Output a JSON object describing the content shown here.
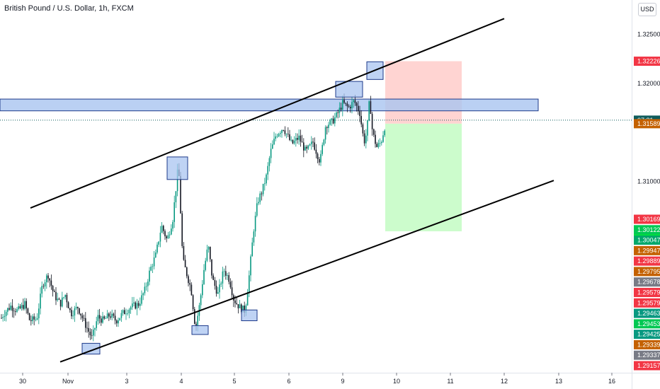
{
  "header": {
    "symbol_title": "British Pound / U.S. Dollar, 1h, FXCM",
    "currency_button": "USD"
  },
  "chart_data": {
    "type": "candlestick",
    "title": "British Pound / U.S. Dollar, 1h, FXCM",
    "ylim": [
      1.2905,
      1.3285
    ],
    "grid": false,
    "x_tick_labels": [
      "30",
      "Nov",
      "3",
      "4",
      "5",
      "6",
      "9",
      "10",
      "11",
      "12",
      "13",
      "16"
    ],
    "y_tick_labels": [
      "1.32500",
      "1.32000",
      "1.31000"
    ],
    "y_tick_values": [
      1.325,
      1.32,
      1.31
    ],
    "price_path": [
      [
        0,
        1.2958
      ],
      [
        5,
        1.2965
      ],
      [
        15,
        1.2973
      ],
      [
        25,
        1.2968
      ],
      [
        35,
        1.2975
      ],
      [
        42,
        1.2958
      ],
      [
        52,
        1.296
      ],
      [
        60,
        1.2995
      ],
      [
        68,
        1.3005
      ],
      [
        76,
        1.2985
      ],
      [
        85,
        1.2975
      ],
      [
        92,
        1.2985
      ],
      [
        100,
        1.2965
      ],
      [
        110,
        1.2972
      ],
      [
        120,
        1.2955
      ],
      [
        130,
        1.294
      ],
      [
        138,
        1.2962
      ],
      [
        146,
        1.2958
      ],
      [
        155,
        1.2964
      ],
      [
        164,
        1.2958
      ],
      [
        174,
        1.2966
      ],
      [
        185,
        1.2972
      ],
      [
        196,
        1.2975
      ],
      [
        205,
        1.299
      ],
      [
        212,
        1.301
      ],
      [
        220,
        1.3025
      ],
      [
        228,
        1.3055
      ],
      [
        236,
        1.304
      ],
      [
        244,
        1.3062
      ],
      [
        252,
        1.3118
      ],
      [
        258,
        1.302
      ],
      [
        264,
        1.3005
      ],
      [
        270,
        1.299
      ],
      [
        276,
        1.295
      ],
      [
        282,
        1.2975
      ],
      [
        288,
        1.301
      ],
      [
        294,
        1.3035
      ],
      [
        300,
        1.3
      ],
      [
        308,
        1.2985
      ],
      [
        316,
        1.301
      ],
      [
        324,
        1.3
      ],
      [
        330,
        1.298
      ],
      [
        338,
        1.2972
      ],
      [
        346,
        1.2968
      ],
      [
        352,
        1.3005
      ],
      [
        358,
        1.305
      ],
      [
        364,
        1.308
      ],
      [
        370,
        1.309
      ],
      [
        376,
        1.3105
      ],
      [
        382,
        1.313
      ],
      [
        390,
        1.3148
      ],
      [
        400,
        1.3155
      ],
      [
        412,
        1.3138
      ],
      [
        422,
        1.3145
      ],
      [
        432,
        1.313
      ],
      [
        442,
        1.314
      ],
      [
        452,
        1.312
      ],
      [
        460,
        1.3158
      ],
      [
        468,
        1.316
      ],
      [
        476,
        1.3168
      ],
      [
        484,
        1.318
      ],
      [
        492,
        1.3175
      ],
      [
        500,
        1.3182
      ],
      [
        508,
        1.317
      ],
      [
        514,
        1.314
      ],
      [
        518,
        1.315
      ],
      [
        522,
        1.3185
      ],
      [
        526,
        1.315
      ],
      [
        532,
        1.3135
      ],
      [
        538,
        1.314
      ],
      [
        544,
        1.3158
      ]
    ],
    "trend_lines": [
      {
        "name": "channel-upper",
        "points": [
          [
            43,
            1.3073
          ],
          [
            712,
            1.3266
          ]
        ]
      },
      {
        "name": "channel-lower",
        "points": [
          [
            85,
            1.2916
          ],
          [
            782,
            1.3101
          ]
        ]
      }
    ],
    "horizontal_zone": {
      "x_range": [
        0,
        760
      ],
      "y_range": [
        1.3172,
        1.3184
      ]
    },
    "pivot_markers": [
      {
        "x_range": [
          116,
          141
        ],
        "y_range": [
          1.2924,
          1.2935
        ]
      },
      {
        "x_range": [
          236,
          265
        ],
        "y_range": [
          1.3102,
          1.3125
        ]
      },
      {
        "x_range": [
          271,
          294
        ],
        "y_range": [
          1.2944,
          1.2953
        ]
      },
      {
        "x_range": [
          341,
          363
        ],
        "y_range": [
          1.2958,
          1.2969
        ]
      },
      {
        "x_range": [
          474,
          512
        ],
        "y_range": [
          1.3186,
          1.3202
        ]
      },
      {
        "x_range": [
          518,
          541
        ],
        "y_range": [
          1.3204,
          1.3222
        ]
      }
    ],
    "position": {
      "x_range": [
        544,
        652
      ],
      "entry": 1.31589,
      "stop": 1.32226,
      "target": 1.30492
    },
    "current_price_line": 1.31625,
    "price_badges": [
      {
        "label": "1.32226",
        "value": 1.32226,
        "color": "#f23645"
      },
      {
        "label": "07:31",
        "value": 1.31625,
        "color": "#0f5c5c"
      },
      {
        "label": "1.31589",
        "value": 1.31589,
        "color": "#c46100"
      },
      {
        "label": "1.30492",
        "value": 1.30492,
        "color": "#00e03b"
      }
    ],
    "indicator_badges": [
      {
        "label": "1.30169",
        "color": "#f23645"
      },
      {
        "label": "1.30122",
        "color": "#00c853"
      },
      {
        "label": "1.30047",
        "color": "#00a86b"
      },
      {
        "label": "1.29947",
        "color": "#c46100"
      },
      {
        "label": "1.29889",
        "color": "#f23645"
      },
      {
        "label": "1.29795",
        "color": "#c46100"
      },
      {
        "label": "1.29678",
        "color": "#787b86"
      },
      {
        "label": "1.29579",
        "color": "#f23645"
      },
      {
        "label": "1.29579",
        "color": "#f23645"
      },
      {
        "label": "1.29463",
        "color": "#089981"
      },
      {
        "label": "1.29453",
        "color": "#00c853"
      },
      {
        "label": "1.29425",
        "color": "#089981"
      },
      {
        "label": "1.29339",
        "color": "#c46100"
      },
      {
        "label": "1.29337",
        "color": "#787b86"
      },
      {
        "label": "1.29157",
        "color": "#f23645"
      }
    ],
    "colors": {
      "up": "#089981",
      "down": "#131722",
      "zone": "#a9c4f0",
      "zone_border": "#1e3a8a",
      "risk": "#ffd4d2",
      "reward": "#ccfccc"
    }
  }
}
